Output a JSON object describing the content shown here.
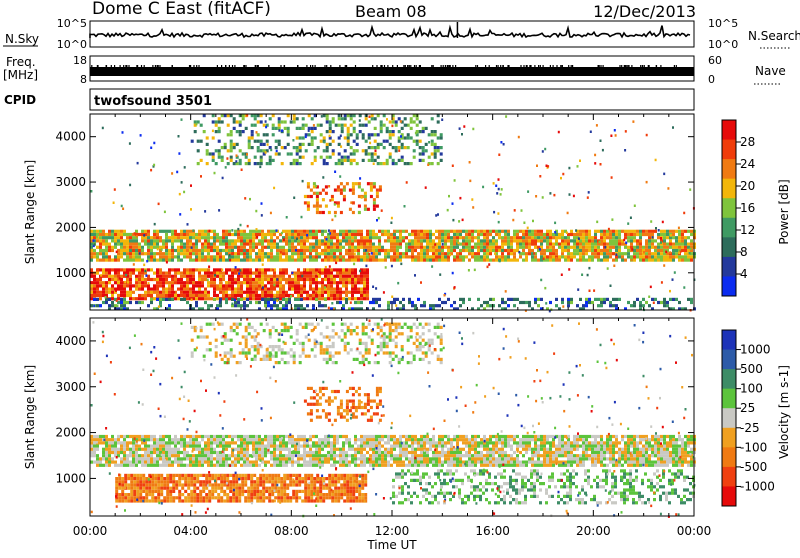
{
  "header": {
    "station": "Dome C East (fitACF)",
    "beam": "Beam 08",
    "date": "12/Dec/2013"
  },
  "strip_labels": {
    "nsky": "N.Sky",
    "nsky_ticks": [
      "10^5",
      "10^0"
    ],
    "nsearch": "N.Search",
    "freq_line1": "Freq.",
    "freq_line2": "[MHz]",
    "freq_ticks": [
      "18",
      "8"
    ],
    "nave": "Nave",
    "nave_ticks": [
      "60",
      "0"
    ],
    "cpid": "CPID",
    "cpid_value": "twofsound 3501"
  },
  "time_axis": {
    "ticks": [
      "00:00",
      "04:00",
      "08:00",
      "12:00",
      "16:00",
      "20:00",
      "00:00"
    ],
    "label": "Time UT"
  },
  "range_axis": {
    "ticks": [
      "1000",
      "2000",
      "3000",
      "4000"
    ],
    "label": "Slant Range [km]"
  },
  "colors": {
    "power": [
      "#0b2cf0",
      "#23399c",
      "#2d6c5b",
      "#3f9a63",
      "#7fc43c",
      "#f2b60a",
      "#f07a12",
      "#f03c0a",
      "#e60a0a"
    ],
    "velocity": [
      "#1d33b8",
      "#2d5ba8",
      "#3d8c66",
      "#5cc43c",
      "#c9c9c4",
      "#f0a020",
      "#f07a12",
      "#f04010",
      "#e60a0a"
    ]
  },
  "chart_data": [
    {
      "type": "heatmap",
      "name": "power",
      "ylabel": "Slant Range [km]",
      "xlabel": "Time UT",
      "x_range": [
        "00:00",
        "24:00"
      ],
      "ylim": [
        180,
        4500
      ],
      "colorbar": {
        "label": "Power [dB]",
        "ticks": [
          "4",
          "8",
          "12",
          "16",
          "20",
          "24",
          "28"
        ],
        "range": [
          0,
          30
        ]
      },
      "bands": [
        {
          "t_start": 0,
          "t_end": 24,
          "r_min": 1300,
          "r_max": 1950,
          "value_db": 18
        },
        {
          "t_start": 0,
          "t_end": 11,
          "r_min": 400,
          "r_max": 1100,
          "value_db": 26
        },
        {
          "t_start": 0,
          "t_end": 24,
          "r_min": 180,
          "r_max": 450,
          "value_db": 8
        },
        {
          "t_start": 4,
          "t_end": 14,
          "r_min": 3400,
          "r_max": 4500,
          "value_db": 10
        },
        {
          "t_start": 8.5,
          "t_end": 11.5,
          "r_min": 2300,
          "r_max": 3000,
          "value_db": 22
        }
      ]
    },
    {
      "type": "heatmap",
      "name": "velocity",
      "ylabel": "Slant Range [km]",
      "xlabel": "Time UT",
      "x_range": [
        "00:00",
        "24:00"
      ],
      "ylim": [
        180,
        4500
      ],
      "colorbar": {
        "label": "Velocity [m s-1]",
        "ticks": [
          "1000",
          "500",
          "100",
          "25",
          "-25",
          "-100",
          "-500",
          "-1000"
        ]
      },
      "bands": [
        {
          "t_start": 0,
          "t_end": 24,
          "r_min": 1300,
          "r_max": 1950,
          "value_ms": 0
        },
        {
          "t_start": 1,
          "t_end": 11,
          "r_min": 500,
          "r_max": 1100,
          "value_ms": -300
        },
        {
          "t_start": 12,
          "t_end": 24,
          "r_min": 500,
          "r_max": 1200,
          "value_ms": 150
        },
        {
          "t_start": 8.5,
          "t_end": 11.5,
          "r_min": 2300,
          "r_max": 3000,
          "value_ms": -300
        },
        {
          "t_start": 4,
          "t_end": 14,
          "r_min": 3500,
          "r_max": 4400,
          "value_ms": 0
        }
      ]
    }
  ]
}
